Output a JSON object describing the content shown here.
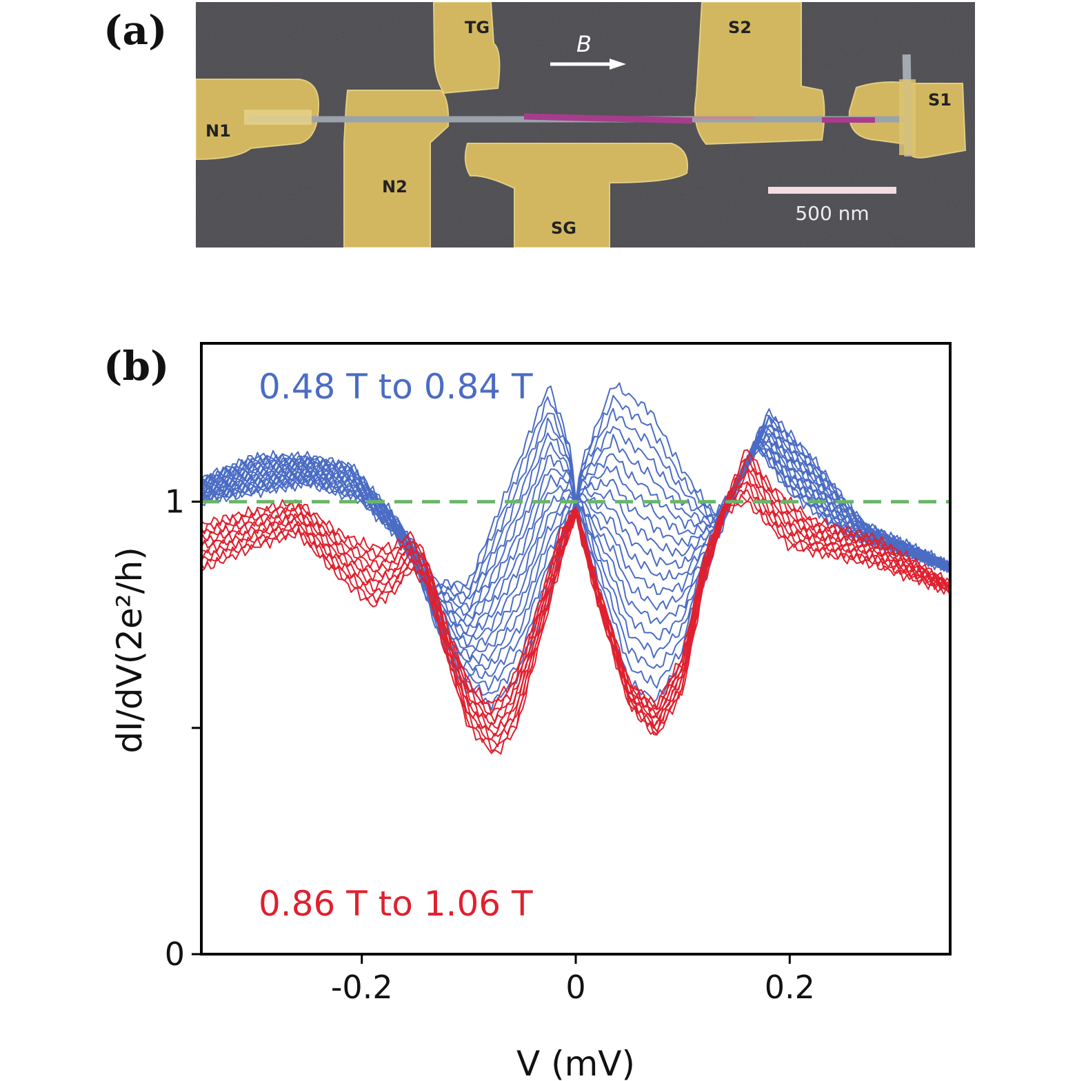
{
  "panels": {
    "a": "(a)",
    "b": "(b)"
  },
  "micrograph": {
    "electrodes": [
      "N1",
      "N2",
      "TG",
      "SG",
      "S2",
      "S1"
    ],
    "field_label": "B",
    "scale_bar": "500 nm",
    "colors": {
      "background": "#48484d",
      "gold": "#d2b760",
      "nanowire": "#9aa2ac",
      "shell": "#a83c8c"
    }
  },
  "chart_data": {
    "type": "line",
    "xlabel": "V (mV)",
    "ylabel": "dI/dV(2e²/h)",
    "xlim": [
      -0.35,
      0.35
    ],
    "ylim": [
      0,
      1.35
    ],
    "xticks": [
      -0.2,
      0,
      0.2
    ],
    "xtick_labels": [
      "-0.2",
      "0",
      "0.2"
    ],
    "yticks": [
      0,
      0.5,
      1
    ],
    "ytick_labels": [
      "0",
      "",
      "1"
    ],
    "reference_line": {
      "y": 1.0,
      "style": "dashed",
      "color": "#6ab56a"
    },
    "groups": [
      {
        "label": "0.48 T to 0.84 T",
        "color": "#4a6cc4",
        "field_range_T": [
          0.48,
          0.84
        ],
        "n_traces": 19,
        "first_trace": {
          "x": [
            -0.35,
            -0.3,
            -0.25,
            -0.21,
            -0.17,
            -0.15,
            -0.13,
            -0.1,
            -0.06,
            -0.025,
            -0.005,
            0,
            0.005,
            0.035,
            0.07,
            0.1,
            0.13,
            0.15,
            0.18,
            0.22,
            0.27,
            0.35
          ],
          "y": [
            1.05,
            1.1,
            1.1,
            1.08,
            0.97,
            0.9,
            0.82,
            0.82,
            1.05,
            1.26,
            1.12,
            1.0,
            1.08,
            1.26,
            1.2,
            1.07,
            0.97,
            1.04,
            1.2,
            1.1,
            0.95,
            0.86
          ]
        },
        "last_trace": {
          "x": [
            -0.35,
            -0.3,
            -0.25,
            -0.2,
            -0.17,
            -0.15,
            -0.13,
            -0.11,
            -0.08,
            -0.05,
            -0.02,
            0,
            0.02,
            0.05,
            0.075,
            0.1,
            0.13,
            0.15,
            0.17,
            0.2,
            0.25,
            0.35
          ],
          "y": [
            1.0,
            1.02,
            1.04,
            1.0,
            0.93,
            0.86,
            0.72,
            0.6,
            0.55,
            0.62,
            0.82,
            1.0,
            0.82,
            0.6,
            0.56,
            0.65,
            0.9,
            1.03,
            1.12,
            1.02,
            0.93,
            0.85
          ]
        }
      },
      {
        "label": "0.86 T to 1.06 T",
        "color": "#e0202e",
        "field_range_T": [
          0.86,
          1.06
        ],
        "n_traces": 11,
        "first_trace": {
          "x": [
            -0.35,
            -0.3,
            -0.26,
            -0.22,
            -0.19,
            -0.17,
            -0.155,
            -0.14,
            -0.12,
            -0.1,
            -0.08,
            -0.06,
            -0.04,
            -0.015,
            0,
            0.02,
            0.05,
            0.075,
            0.1,
            0.12,
            0.14,
            0.16,
            0.18,
            0.22,
            0.28,
            0.35
          ],
          "y": [
            0.95,
            0.98,
            1.0,
            0.93,
            0.9,
            0.9,
            0.93,
            0.88,
            0.72,
            0.6,
            0.55,
            0.6,
            0.73,
            0.93,
            0.99,
            0.82,
            0.6,
            0.55,
            0.66,
            0.88,
            1.0,
            1.12,
            1.04,
            0.96,
            0.92,
            0.82
          ]
        },
        "last_trace": {
          "x": [
            -0.35,
            -0.3,
            -0.26,
            -0.22,
            -0.19,
            -0.17,
            -0.155,
            -0.14,
            -0.12,
            -0.1,
            -0.075,
            -0.055,
            -0.035,
            -0.01,
            0,
            0.02,
            0.05,
            0.075,
            0.1,
            0.12,
            0.14,
            0.16,
            0.2,
            0.28,
            0.35
          ],
          "y": [
            0.85,
            0.9,
            0.93,
            0.83,
            0.77,
            0.8,
            0.85,
            0.82,
            0.65,
            0.5,
            0.44,
            0.5,
            0.68,
            0.9,
            0.97,
            0.78,
            0.55,
            0.48,
            0.58,
            0.82,
            0.98,
            1.0,
            0.9,
            0.86,
            0.8
          ]
        }
      }
    ]
  }
}
